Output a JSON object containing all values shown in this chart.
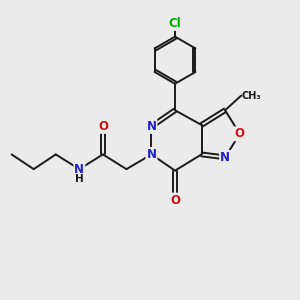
{
  "bg_color": "#ebebeb",
  "bond_color": "#1a1a1a",
  "bond_width": 1.4,
  "atom_colors": {
    "C": "#1a1a1a",
    "N": "#2222cc",
    "O": "#cc1111",
    "Cl": "#00aa00",
    "H": "#1a1a1a"
  },
  "fs": 8.5,
  "fs_small": 7.0,
  "dbo": 0.065
}
